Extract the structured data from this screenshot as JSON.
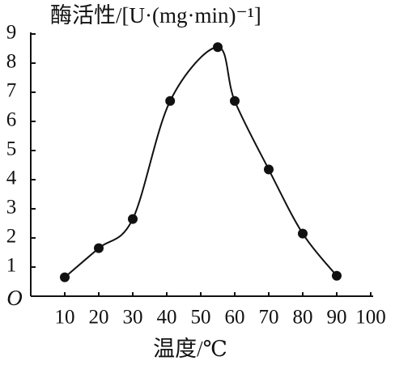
{
  "chart_data": {
    "type": "line",
    "y_label": "酶活性/[U·(mg·min)⁻¹]",
    "x_label": "温度/℃",
    "origin_label": "O",
    "x": [
      10,
      20,
      30,
      41,
      55,
      60,
      70,
      80,
      90
    ],
    "series": [
      {
        "values": [
          0.65,
          1.65,
          2.65,
          6.7,
          8.55,
          6.7,
          4.35,
          2.15,
          0.7
        ],
        "color": "#111111"
      }
    ],
    "smooth": true,
    "xlim": [
      0,
      100
    ],
    "xticks": [
      10,
      20,
      30,
      40,
      50,
      60,
      70,
      80,
      90,
      100
    ],
    "ylim": [
      0,
      9
    ],
    "yticks": [
      1,
      2,
      3,
      4,
      5,
      6,
      7,
      8,
      9
    ]
  }
}
